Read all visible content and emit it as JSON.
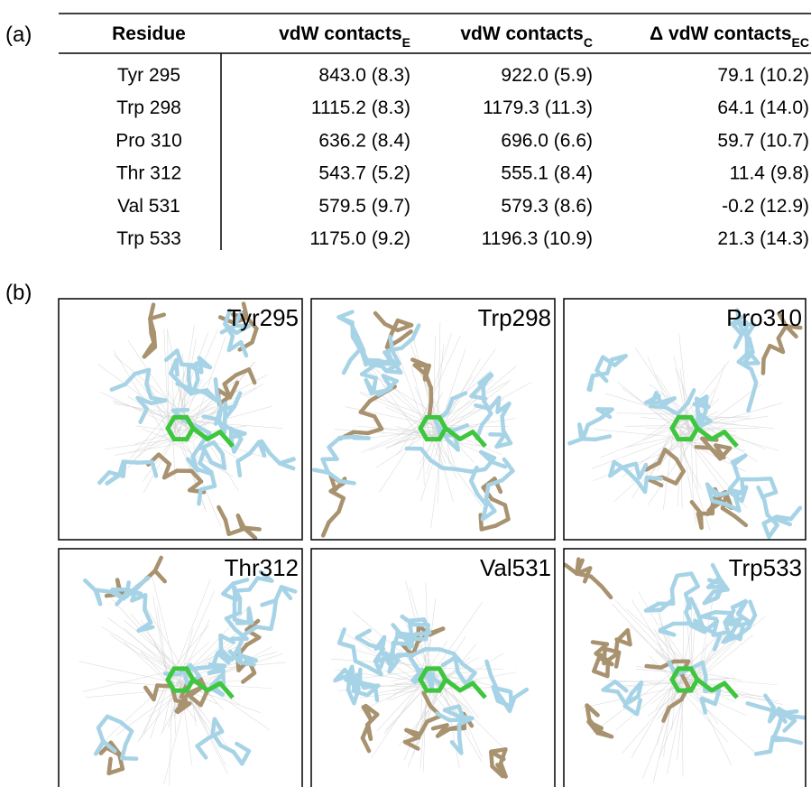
{
  "panel_a_label": "(a)",
  "table": {
    "header": [
      {
        "text": "Residue"
      },
      {
        "text": "vdW contacts",
        "sub": "E"
      },
      {
        "text": "vdW contacts",
        "sub": "C"
      },
      {
        "text": "Δ vdW contacts",
        "sub": "EC"
      }
    ],
    "rows": [
      [
        "Tyr 295",
        "843.0 (8.3)",
        "922.0 (5.9)",
        "79.1 (10.2)"
      ],
      [
        "Trp 298",
        "1115.2 (8.3)",
        "1179.3 (11.3)",
        "64.1 (14.0)"
      ],
      [
        "Pro 310",
        "636.2 (8.4)",
        "696.0 (6.6)",
        "59.7 (10.7)"
      ],
      [
        "Thr 312",
        "543.7 (5.2)",
        "555.1 (8.4)",
        "11.4 (9.8)"
      ],
      [
        "Val 531",
        "579.5 (9.7)",
        "579.3 (8.6)",
        "-0.2 (12.9)"
      ],
      [
        "Trp 533",
        "1175.0 (9.2)",
        "1196.3 (10.9)",
        "21.3 (14.3)"
      ]
    ]
  },
  "panel_b_label": "(b)",
  "panels": [
    {
      "label": "Tyr295"
    },
    {
      "label": "Trp298"
    },
    {
      "label": "Pro310"
    },
    {
      "label": "Thr312"
    },
    {
      "label": "Val531"
    },
    {
      "label": "Trp533"
    }
  ]
}
